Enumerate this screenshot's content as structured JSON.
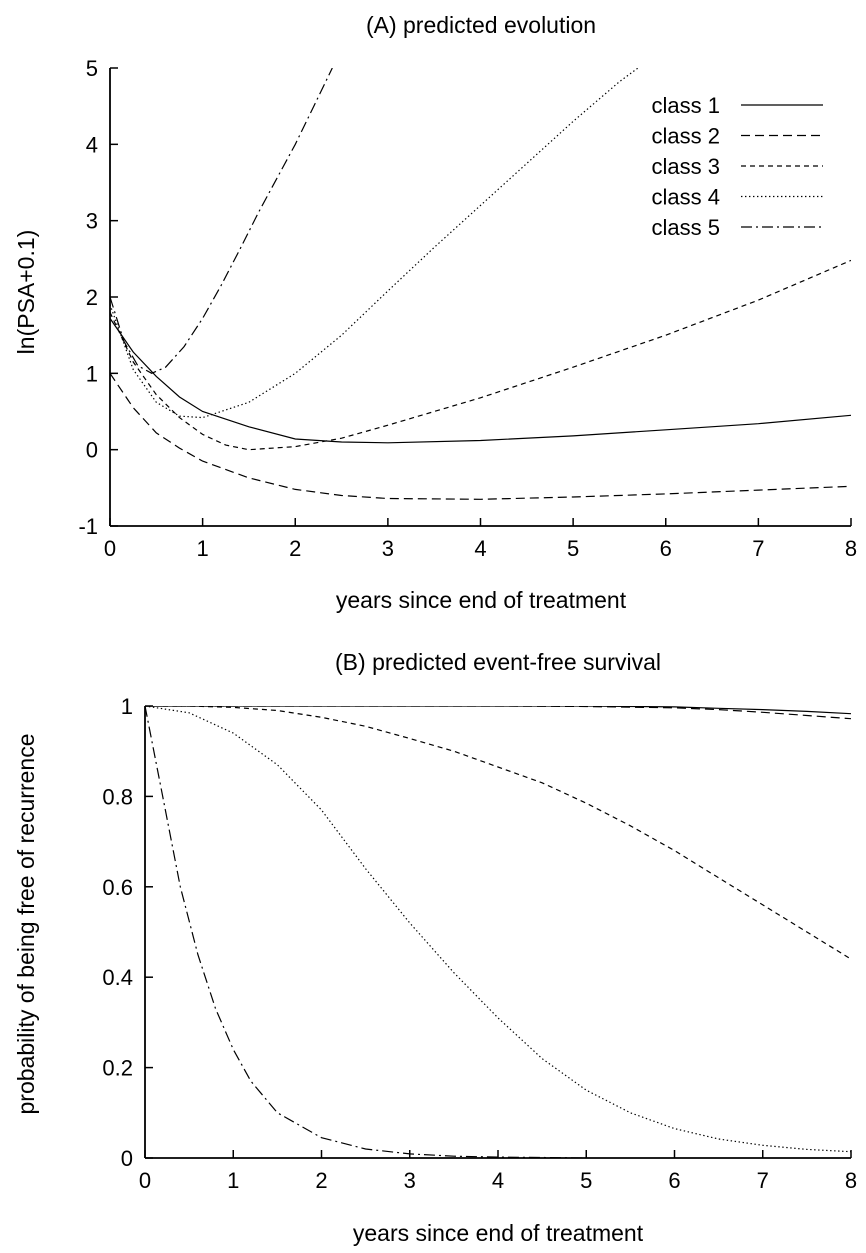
{
  "chart_data": [
    {
      "type": "line",
      "title": "(A) predicted evolution",
      "xlabel": "years since end of treatment",
      "ylabel": "ln(PSA+0.1)",
      "xlim": [
        0,
        8
      ],
      "ylim": [
        -1,
        5
      ],
      "xticks": [
        "0",
        "1",
        "2",
        "3",
        "4",
        "5",
        "6",
        "7",
        "8"
      ],
      "yticks": [
        "-1",
        "0",
        "1",
        "2",
        "3",
        "4",
        "5"
      ],
      "xtick_values": [
        0,
        1,
        2,
        3,
        4,
        5,
        6,
        7,
        8
      ],
      "ytick_values": [
        -1,
        0,
        1,
        2,
        3,
        4,
        5
      ],
      "grid": false,
      "legend_position": "top-right",
      "series": [
        {
          "name": "class 1",
          "dash": "solid",
          "x": [
            0,
            0.25,
            0.5,
            0.75,
            1,
            1.5,
            2,
            2.5,
            3,
            4,
            5,
            6,
            7,
            8
          ],
          "y": [
            1.72,
            1.28,
            0.96,
            0.69,
            0.5,
            0.3,
            0.14,
            0.1,
            0.09,
            0.12,
            0.18,
            0.26,
            0.34,
            0.45
          ]
        },
        {
          "name": "class 2",
          "dash": "long-dash",
          "x": [
            0,
            0.25,
            0.5,
            0.75,
            1,
            1.5,
            2,
            2.5,
            3,
            4,
            5,
            6,
            7,
            8
          ],
          "y": [
            1.0,
            0.55,
            0.22,
            0.02,
            -0.15,
            -0.37,
            -0.52,
            -0.6,
            -0.64,
            -0.65,
            -0.62,
            -0.58,
            -0.53,
            -0.48
          ]
        },
        {
          "name": "class 3",
          "dash": "short-dash",
          "x": [
            0,
            0.25,
            0.5,
            0.75,
            1,
            1.25,
            1.5,
            2,
            2.5,
            3,
            4,
            5,
            6,
            7,
            8
          ],
          "y": [
            1.8,
            1.15,
            0.72,
            0.42,
            0.2,
            0.06,
            0.0,
            0.04,
            0.15,
            0.32,
            0.68,
            1.08,
            1.5,
            1.96,
            2.48
          ]
        },
        {
          "name": "class 4",
          "dash": "dotted",
          "x": [
            0,
            0.25,
            0.5,
            0.75,
            1,
            1.5,
            2,
            2.5,
            3,
            3.5,
            4,
            4.5,
            5,
            5.5,
            5.7
          ],
          "y": [
            1.9,
            1.05,
            0.62,
            0.44,
            0.42,
            0.62,
            1.0,
            1.5,
            2.08,
            2.65,
            3.2,
            3.75,
            4.3,
            4.82,
            5.0
          ]
        },
        {
          "name": "class 5",
          "dash": "dash-dot",
          "x": [
            0,
            0.15,
            0.3,
            0.45,
            0.6,
            0.8,
            1,
            1.2,
            1.4,
            1.6,
            1.8,
            2,
            2.2,
            2.4
          ],
          "y": [
            2.0,
            1.42,
            1.1,
            1.0,
            1.08,
            1.35,
            1.72,
            2.15,
            2.62,
            3.1,
            3.55,
            4.0,
            4.5,
            5.0
          ]
        }
      ]
    },
    {
      "type": "line",
      "title": "(B) predicted event-free survival",
      "xlabel": "years since end of treatment",
      "ylabel": "probability of being free of recurrence",
      "xlim": [
        0,
        8
      ],
      "ylim": [
        0,
        1
      ],
      "xticks": [
        "0",
        "1",
        "2",
        "3",
        "4",
        "5",
        "6",
        "7",
        "8"
      ],
      "yticks": [
        "0",
        "0.2",
        "0.4",
        "0.6",
        "0.8",
        "1"
      ],
      "xtick_values": [
        0,
        1,
        2,
        3,
        4,
        5,
        6,
        7,
        8
      ],
      "ytick_values": [
        0,
        0.2,
        0.4,
        0.6,
        0.8,
        1
      ],
      "grid": false,
      "series": [
        {
          "dash": "solid",
          "x": [
            0,
            1,
            2,
            3,
            4,
            5,
            6,
            6.5,
            7,
            7.5,
            8
          ],
          "y": [
            1,
            1,
            1,
            1,
            1,
            1,
            0.998,
            0.995,
            0.992,
            0.988,
            0.983
          ]
        },
        {
          "dash": "long-dash",
          "x": [
            0,
            1,
            2,
            3,
            4,
            5,
            6,
            6.5,
            7,
            7.5,
            8
          ],
          "y": [
            1,
            1,
            1,
            1,
            1,
            0.999,
            0.996,
            0.992,
            0.986,
            0.979,
            0.972
          ]
        },
        {
          "dash": "short-dash",
          "x": [
            0,
            0.5,
            1,
            1.5,
            2,
            2.5,
            3,
            3.5,
            4,
            4.5,
            5,
            5.5,
            6,
            6.5,
            7,
            7.5,
            8
          ],
          "y": [
            1,
            1,
            0.997,
            0.99,
            0.975,
            0.955,
            0.928,
            0.9,
            0.865,
            0.83,
            0.785,
            0.735,
            0.68,
            0.62,
            0.56,
            0.5,
            0.44
          ]
        },
        {
          "dash": "dotted",
          "x": [
            0,
            0.5,
            1,
            1.5,
            2,
            2.5,
            3,
            3.5,
            4,
            4.5,
            5,
            5.5,
            6,
            6.5,
            7,
            7.5,
            8
          ],
          "y": [
            1,
            0.985,
            0.94,
            0.87,
            0.77,
            0.64,
            0.52,
            0.41,
            0.31,
            0.22,
            0.15,
            0.1,
            0.065,
            0.042,
            0.028,
            0.019,
            0.014
          ]
        },
        {
          "dash": "dash-dot",
          "x": [
            0,
            0.2,
            0.4,
            0.6,
            0.8,
            1,
            1.2,
            1.5,
            2,
            2.5,
            3,
            3.5,
            4,
            4.5,
            5
          ],
          "y": [
            1,
            0.8,
            0.6,
            0.45,
            0.33,
            0.24,
            0.17,
            0.1,
            0.045,
            0.02,
            0.009,
            0.004,
            0.002,
            0.001,
            0
          ]
        }
      ]
    }
  ]
}
